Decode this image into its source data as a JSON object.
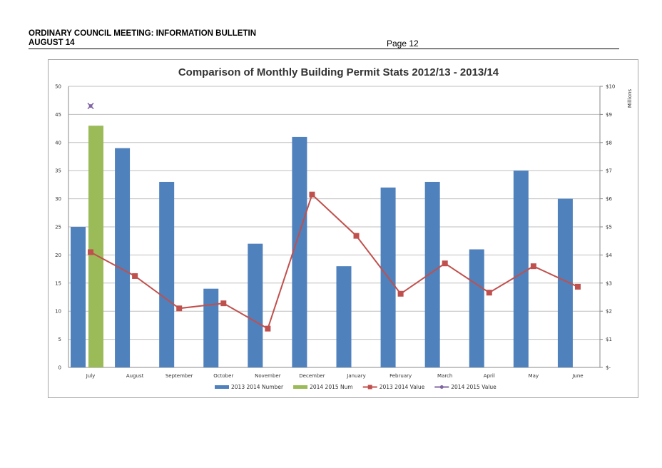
{
  "header": {
    "line1": "ORDINARY COUNCIL MEETING: INFORMATION BULLETIN",
    "line2": "AUGUST 14",
    "page": "Page 12"
  },
  "colors": {
    "bar2013": "#4f81bd",
    "bar2014": "#9bbb59",
    "line2013": "#c0504d",
    "line2014": "#8064a2",
    "grid": "#bfbfbf"
  },
  "chart_data": {
    "type": "bar",
    "title": "Comparison of Monthly Building Permit Stats 2012/13 - 2013/14",
    "categories": [
      "July",
      "August",
      "September",
      "October",
      "November",
      "December",
      "January",
      "February",
      "March",
      "April",
      "May",
      "June"
    ],
    "ylim": [
      0,
      50
    ],
    "yticks": [
      "0",
      "5",
      "10",
      "15",
      "20",
      "25",
      "30",
      "35",
      "40",
      "45",
      "50"
    ],
    "y2lim": [
      0,
      10
    ],
    "y2ticks": [
      "$-",
      "$1",
      "$2",
      "$3",
      "$4",
      "$5",
      "$6",
      "$7",
      "$8",
      "$9",
      "$10"
    ],
    "y2label": "Millions",
    "grid": true,
    "legend_position": "bottom",
    "series": [
      {
        "name": "2013 2014 Number",
        "type": "bar",
        "axis": "left",
        "values": [
          25,
          39,
          33,
          14,
          22,
          41,
          18,
          32,
          33,
          21,
          35,
          30
        ]
      },
      {
        "name": "2014 2015 Num",
        "type": "bar",
        "axis": "left",
        "values": [
          43,
          null,
          null,
          null,
          null,
          null,
          null,
          null,
          null,
          null,
          null,
          null
        ]
      },
      {
        "name": "2013 2014 Value",
        "type": "line",
        "axis": "right",
        "values": [
          4.1,
          3.25,
          2.1,
          2.28,
          1.38,
          6.15,
          4.68,
          2.62,
          3.7,
          2.66,
          3.6,
          2.87
        ]
      },
      {
        "name": "2014 2015 Value",
        "type": "line",
        "axis": "right",
        "values": [
          9.3,
          null,
          null,
          null,
          null,
          null,
          null,
          null,
          null,
          null,
          null,
          null
        ]
      }
    ]
  }
}
